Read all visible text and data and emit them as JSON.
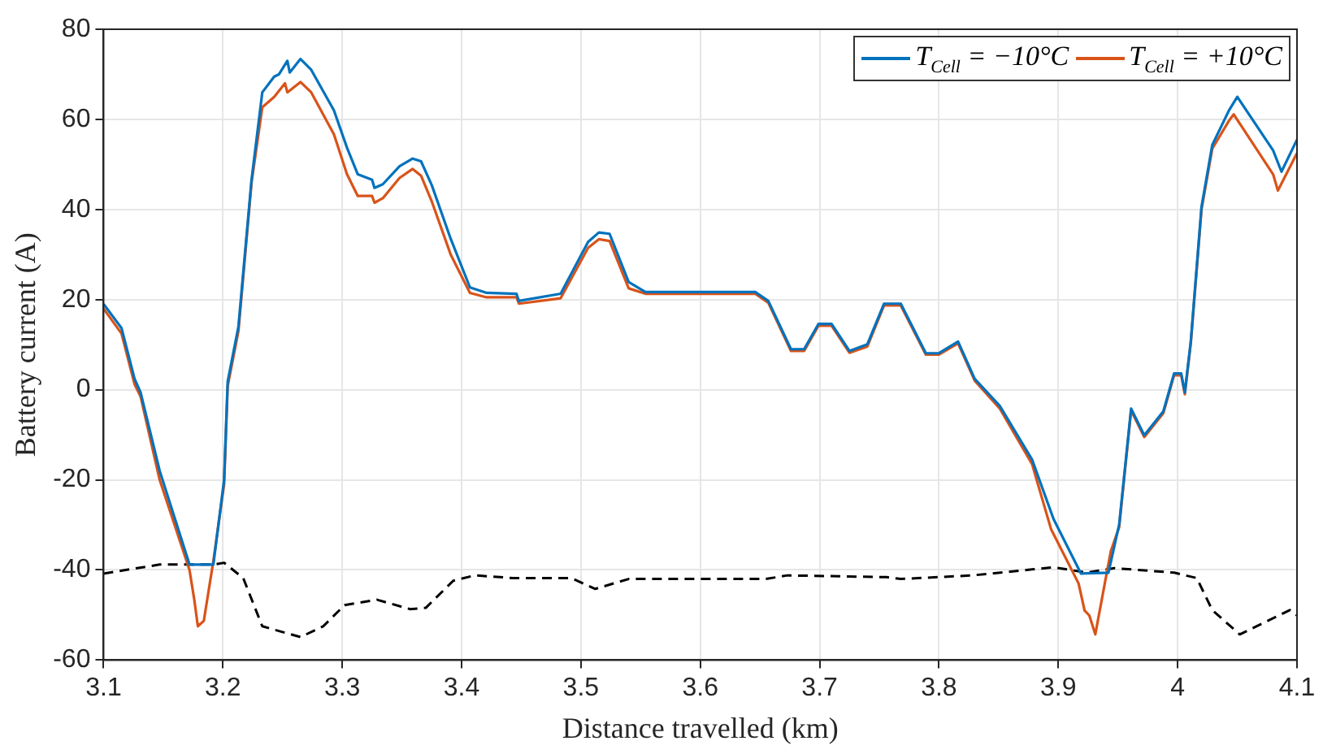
{
  "chart_data": {
    "type": "line",
    "xlabel": "Distance travelled (km)",
    "ylabel": "Battery current (A)",
    "xlim": [
      3.1,
      4.1
    ],
    "xticks": [
      3.1,
      3.2,
      3.3,
      3.4,
      3.5,
      3.6,
      3.7,
      3.8,
      3.9,
      4,
      4.1
    ],
    "ylim": [
      -60,
      80
    ],
    "yticks": [
      -60,
      -40,
      -20,
      0,
      20,
      40,
      60,
      80
    ],
    "grid": true,
    "legend": "top right",
    "marker": "none",
    "series": [
      {
        "name": "T$_{Cell}$ = −10°C",
        "color": "#0072bd",
        "line_style": "solid",
        "x": [
          3.1,
          3.115,
          3.126,
          3.131,
          3.147,
          3.172,
          3.192,
          3.201,
          3.204,
          3.213,
          3.224,
          3.233,
          3.243,
          3.247,
          3.254,
          3.256,
          3.265,
          3.274,
          3.293,
          3.304,
          3.313,
          3.325,
          3.327,
          3.334,
          3.348,
          3.359,
          3.366,
          3.375,
          3.391,
          3.407,
          3.421,
          3.446,
          3.448,
          3.483,
          3.506,
          3.515,
          3.524,
          3.54,
          3.554,
          3.646,
          3.657,
          3.676,
          3.687,
          3.699,
          3.71,
          3.725,
          3.74,
          3.754,
          3.768,
          3.789,
          3.8,
          3.816,
          3.83,
          3.851,
          3.878,
          3.896,
          3.919,
          3.942,
          3.951,
          3.961,
          3.972,
          3.988,
          3.997,
          4.003,
          4.006,
          4.011,
          4.02,
          4.029,
          4.043,
          4.05,
          4.08,
          4.087,
          4.1
        ],
        "values": [
          19,
          13.7,
          2.4,
          -0.6,
          -18,
          -38.8,
          -38.8,
          -20,
          1.8,
          14,
          46.6,
          66,
          69.5,
          70,
          73,
          70.4,
          73.4,
          71,
          62,
          53.7,
          47.8,
          46.6,
          44.8,
          45.6,
          49.6,
          51.3,
          50.7,
          45.4,
          33.4,
          22.7,
          21.5,
          21.3,
          19.7,
          21.3,
          32.8,
          34.9,
          34.6,
          23.9,
          21.7,
          21.7,
          19.7,
          9,
          9,
          14.6,
          14.6,
          8.6,
          10.1,
          19.1,
          19.1,
          8.1,
          8.1,
          10.7,
          2.4,
          -3.6,
          -15.5,
          -28.7,
          -40.8,
          -40.6,
          -29.9,
          -4.2,
          -10.1,
          -4.8,
          3.6,
          3.6,
          -0.6,
          10.7,
          40.6,
          54.3,
          62,
          65,
          53.1,
          48.4,
          55.5
        ]
      },
      {
        "name": "T$_{Cell}$ = +10°C",
        "color": "#d95319",
        "line_style": "solid",
        "x": [
          3.1,
          3.115,
          3.126,
          3.131,
          3.147,
          3.172,
          3.176,
          3.179,
          3.184,
          3.192,
          3.201,
          3.204,
          3.213,
          3.224,
          3.233,
          3.243,
          3.252,
          3.254,
          3.265,
          3.274,
          3.293,
          3.304,
          3.313,
          3.325,
          3.327,
          3.334,
          3.348,
          3.359,
          3.366,
          3.375,
          3.391,
          3.407,
          3.421,
          3.446,
          3.448,
          3.483,
          3.506,
          3.515,
          3.524,
          3.54,
          3.554,
          3.646,
          3.657,
          3.676,
          3.687,
          3.699,
          3.71,
          3.725,
          3.74,
          3.754,
          3.768,
          3.789,
          3.8,
          3.816,
          3.83,
          3.851,
          3.878,
          3.894,
          3.917,
          3.922,
          3.926,
          3.931,
          3.944,
          3.951,
          3.961,
          3.972,
          3.988,
          3.997,
          4.003,
          4.006,
          4.011,
          4.02,
          4.029,
          4.043,
          4.047,
          4.08,
          4.084,
          4.1
        ],
        "values": [
          18,
          12.5,
          1.2,
          -1.5,
          -20,
          -40,
          -46.6,
          -52.5,
          -51.3,
          -38,
          -21,
          0.8,
          13,
          46,
          62.7,
          65,
          68,
          66,
          68.3,
          66,
          56.7,
          47.8,
          43,
          43,
          41.5,
          42.5,
          47,
          49,
          47.5,
          41.8,
          29.9,
          21.5,
          20.5,
          20.5,
          19.1,
          20.3,
          31.5,
          33.4,
          33,
          22.5,
          21.3,
          21.3,
          19.3,
          8.6,
          8.6,
          14.2,
          14.2,
          8.2,
          9.6,
          18.7,
          18.7,
          7.8,
          7.8,
          10.3,
          2,
          -4.2,
          -16.5,
          -31,
          -43,
          -49,
          -50.1,
          -54.3,
          -35.8,
          -30.5,
          -4.6,
          -10.5,
          -5.2,
          3.2,
          3.2,
          -1,
          10.3,
          40,
          53.5,
          59.7,
          61.1,
          47.8,
          44.2,
          52.5
        ]
      },
      {
        "color": "#000000",
        "line_style": "dashed",
        "x": [
          3.1,
          3.147,
          3.172,
          3.192,
          3.201,
          3.217,
          3.233,
          3.265,
          3.284,
          3.302,
          3.329,
          3.357,
          3.37,
          3.393,
          3.411,
          3.443,
          3.492,
          3.512,
          3.54,
          3.655,
          3.673,
          3.756,
          3.768,
          3.828,
          3.896,
          3.924,
          3.947,
          3.997,
          4.016,
          4.029,
          4.052,
          4.094,
          4.1
        ],
        "values": [
          -40.8,
          -38.8,
          -38.8,
          -38.8,
          -38.4,
          -41.8,
          -52.5,
          -54.9,
          -52.5,
          -47.8,
          -46.6,
          -48.7,
          -48.4,
          -42.4,
          -41.2,
          -41.8,
          -41.8,
          -44.2,
          -42,
          -42,
          -41.2,
          -41.6,
          -42,
          -41.2,
          -39.4,
          -40.6,
          -39.6,
          -40.6,
          -41.8,
          -48.9,
          -54.3,
          -48.9,
          -50.1
        ]
      }
    ]
  }
}
